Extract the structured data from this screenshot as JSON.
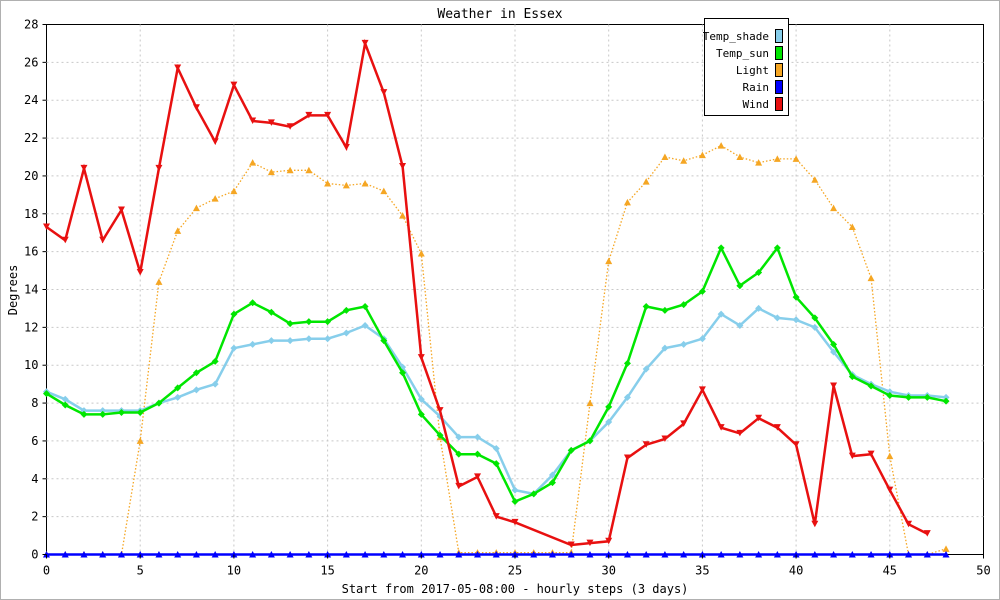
{
  "chart_data": {
    "type": "line",
    "title": "Weather in Essex",
    "xlabel": "Start from 2017-05-08:00 - hourly steps (3 days)",
    "ylabel": "Degrees",
    "xlim": [
      0,
      50
    ],
    "ylim": [
      0,
      28
    ],
    "x_ticks": [
      "0",
      "5",
      "10",
      "15",
      "20",
      "25",
      "30",
      "35",
      "40",
      "45",
      "50"
    ],
    "y_ticks": [
      "0",
      "2",
      "4",
      "6",
      "8",
      "10",
      "12",
      "14",
      "16",
      "18",
      "20",
      "22",
      "24",
      "26",
      "28"
    ],
    "grid": true,
    "legend_position": "top-right",
    "series": [
      {
        "name": "Temp_shade",
        "color": "#87ceeb",
        "style": "solid",
        "marker": "diamond",
        "x": [
          0,
          1,
          2,
          3,
          4,
          5,
          6,
          7,
          8,
          9,
          10,
          11,
          12,
          13,
          14,
          15,
          16,
          17,
          18,
          19,
          20,
          21,
          22,
          23,
          24,
          25,
          26,
          27,
          28,
          29,
          30,
          31,
          32,
          33,
          34,
          35,
          36,
          37,
          38,
          39,
          40,
          41,
          42,
          43,
          44,
          45,
          46,
          47,
          48
        ],
        "values": [
          8.6,
          8.2,
          7.6,
          7.6,
          7.6,
          7.6,
          8.0,
          8.3,
          8.7,
          9.0,
          10.9,
          11.1,
          11.3,
          11.3,
          11.4,
          11.4,
          11.7,
          12.1,
          11.4,
          9.9,
          8.2,
          7.3,
          6.2,
          6.2,
          5.6,
          3.4,
          3.2,
          4.2,
          5.5,
          6.0,
          7.0,
          8.3,
          9.8,
          10.9,
          11.1,
          11.4,
          12.7,
          12.1,
          13.0,
          12.5,
          12.4,
          12.0,
          10.7,
          9.5,
          9.0,
          8.6,
          8.4,
          8.4,
          8.3
        ]
      },
      {
        "name": "Temp_sun",
        "color": "#00e600",
        "style": "solid",
        "marker": "diamond",
        "x": [
          0,
          1,
          2,
          3,
          4,
          5,
          6,
          7,
          8,
          9,
          10,
          11,
          12,
          13,
          14,
          15,
          16,
          17,
          18,
          19,
          20,
          21,
          22,
          23,
          24,
          25,
          26,
          27,
          28,
          29,
          30,
          31,
          32,
          33,
          34,
          35,
          36,
          37,
          38,
          39,
          40,
          41,
          42,
          43,
          44,
          45,
          46,
          47,
          48
        ],
        "values": [
          8.5,
          7.9,
          7.4,
          7.4,
          7.5,
          7.5,
          8.0,
          8.8,
          9.6,
          10.2,
          12.7,
          13.3,
          12.8,
          12.2,
          12.3,
          12.3,
          12.9,
          13.1,
          11.3,
          9.6,
          7.4,
          6.3,
          5.3,
          5.3,
          4.8,
          2.8,
          3.2,
          3.8,
          5.5,
          6.0,
          7.8,
          10.1,
          13.1,
          12.9,
          13.2,
          13.9,
          16.2,
          14.2,
          14.9,
          16.2,
          13.6,
          12.5,
          11.1,
          9.4,
          8.9,
          8.4,
          8.3,
          8.3,
          8.1
        ]
      },
      {
        "name": "Light",
        "color": "#f5a623",
        "style": "dotted",
        "marker": "triangle-up",
        "x": [
          0,
          1,
          2,
          3,
          4,
          5,
          6,
          7,
          8,
          9,
          10,
          11,
          12,
          13,
          14,
          15,
          16,
          17,
          18,
          19,
          20,
          21,
          22,
          23,
          24,
          25,
          26,
          27,
          28,
          29,
          30,
          31,
          32,
          33,
          34,
          35,
          36,
          37,
          38,
          39,
          40,
          41,
          42,
          43,
          44,
          45,
          46,
          47,
          48
        ],
        "values": [
          0,
          0,
          0,
          0,
          0,
          6.0,
          14.4,
          17.1,
          18.3,
          18.8,
          19.2,
          20.7,
          20.2,
          20.3,
          20.3,
          19.6,
          19.5,
          19.6,
          19.2,
          17.9,
          15.9,
          6.2,
          0.1,
          0.1,
          0.1,
          0.1,
          0.1,
          0.1,
          0.1,
          8.0,
          15.5,
          18.6,
          19.7,
          21.0,
          20.8,
          21.1,
          21.6,
          21.0,
          20.7,
          20.9,
          20.9,
          19.8,
          18.3,
          17.3,
          14.6,
          5.2,
          0,
          0,
          0.3
        ]
      },
      {
        "name": "Rain",
        "color": "#0000ff",
        "style": "solid",
        "marker": "triangle-up",
        "x": [
          0,
          1,
          2,
          3,
          4,
          5,
          6,
          7,
          8,
          9,
          10,
          11,
          12,
          13,
          14,
          15,
          16,
          17,
          18,
          19,
          20,
          21,
          22,
          23,
          24,
          25,
          26,
          27,
          28,
          29,
          30,
          31,
          32,
          33,
          34,
          35,
          36,
          37,
          38,
          39,
          40,
          41,
          42,
          43,
          44,
          45,
          46,
          47,
          48
        ],
        "values": [
          0,
          0,
          0,
          0,
          0,
          0,
          0,
          0,
          0,
          0,
          0,
          0,
          0,
          0,
          0,
          0,
          0,
          0,
          0,
          0,
          0,
          0,
          0,
          0,
          0,
          0,
          0,
          0,
          0,
          0,
          0,
          0,
          0,
          0,
          0,
          0,
          0,
          0,
          0,
          0,
          0,
          0,
          0,
          0,
          0,
          0,
          0,
          0,
          0
        ]
      },
      {
        "name": "Wind",
        "color": "#e81010",
        "style": "solid",
        "marker": "triangle-down",
        "x": [
          0,
          1,
          2,
          3,
          4,
          5,
          6,
          7,
          8,
          9,
          10,
          11,
          12,
          13,
          14,
          15,
          16,
          17,
          18,
          19,
          20,
          21,
          22,
          23,
          24,
          25,
          28,
          29,
          30,
          31,
          32,
          33,
          34,
          35,
          36,
          37,
          38,
          39,
          40,
          41,
          42,
          43,
          44,
          45,
          46,
          47
        ],
        "values": [
          17.3,
          16.6,
          20.4,
          16.6,
          18.2,
          14.9,
          20.4,
          25.7,
          23.6,
          21.8,
          24.8,
          22.9,
          22.8,
          22.6,
          23.2,
          23.2,
          21.5,
          27.0,
          24.4,
          20.5,
          10.4,
          7.6,
          3.6,
          4.1,
          2.0,
          1.7,
          0.5,
          0.6,
          0.7,
          5.1,
          5.8,
          6.1,
          6.9,
          8.7,
          6.7,
          6.4,
          7.2,
          6.7,
          5.8,
          1.6,
          8.9,
          5.2,
          5.3,
          3.4,
          1.6,
          1.1
        ]
      }
    ]
  }
}
